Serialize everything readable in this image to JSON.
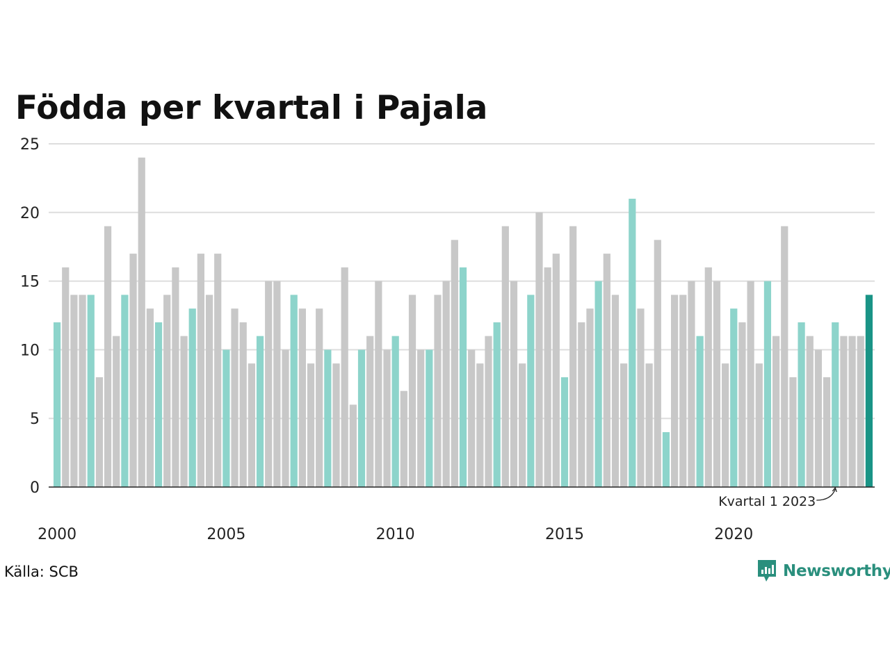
{
  "chart_data": {
    "type": "bar",
    "title": "Födda per kvartal i Pajala",
    "xlabel": "",
    "ylabel": "",
    "ylim": [
      0,
      25
    ],
    "yticks": [
      "0",
      "5",
      "10",
      "15",
      "20",
      "25"
    ],
    "x_tick_labels": [
      "2000",
      "2005",
      "2010",
      "2015",
      "2020"
    ],
    "grid": true,
    "legend": "none",
    "colors": {
      "q1": "#8dd4cb",
      "other": "#c8c8c8",
      "latest": "#1a9486",
      "grid": "#dddddd"
    },
    "categories": [
      "2000 Q1",
      "2000 Q2",
      "2000 Q3",
      "2000 Q4",
      "2001 Q1",
      "2001 Q2",
      "2001 Q3",
      "2001 Q4",
      "2002 Q1",
      "2002 Q2",
      "2002 Q3",
      "2002 Q4",
      "2003 Q1",
      "2003 Q2",
      "2003 Q3",
      "2003 Q4",
      "2004 Q1",
      "2004 Q2",
      "2004 Q3",
      "2004 Q4",
      "2005 Q1",
      "2005 Q2",
      "2005 Q3",
      "2005 Q4",
      "2006 Q1",
      "2006 Q2",
      "2006 Q3",
      "2006 Q4",
      "2007 Q1",
      "2007 Q2",
      "2007 Q3",
      "2007 Q4",
      "2008 Q1",
      "2008 Q2",
      "2008 Q3",
      "2008 Q4",
      "2009 Q1",
      "2009 Q2",
      "2009 Q3",
      "2009 Q4",
      "2010 Q1",
      "2010 Q2",
      "2010 Q3",
      "2010 Q4",
      "2011 Q1",
      "2011 Q2",
      "2011 Q3",
      "2011 Q4",
      "2012 Q1",
      "2012 Q2",
      "2012 Q3",
      "2012 Q4",
      "2013 Q1",
      "2013 Q2",
      "2013 Q3",
      "2013 Q4",
      "2014 Q1",
      "2014 Q2",
      "2014 Q3",
      "2014 Q4",
      "2015 Q1",
      "2015 Q2",
      "2015 Q3",
      "2015 Q4",
      "2016 Q1",
      "2016 Q2",
      "2016 Q3",
      "2016 Q4",
      "2017 Q1",
      "2017 Q2",
      "2017 Q3",
      "2017 Q4",
      "2018 Q1",
      "2018 Q2",
      "2018 Q3",
      "2018 Q4",
      "2019 Q1",
      "2019 Q2",
      "2019 Q3",
      "2019 Q4",
      "2020 Q1",
      "2020 Q2",
      "2020 Q3",
      "2020 Q4",
      "2021 Q1",
      "2021 Q2",
      "2021 Q3",
      "2021 Q4",
      "2022 Q1",
      "2022 Q2",
      "2022 Q3",
      "2022 Q4",
      "2023 Q1",
      "2023 Q2",
      "2023 Q3",
      "2023 Q4",
      "2024 Q1"
    ],
    "values": [
      12,
      16,
      14,
      14,
      14,
      8,
      19,
      11,
      14,
      17,
      24,
      13,
      12,
      14,
      16,
      11,
      13,
      17,
      14,
      17,
      10,
      13,
      12,
      9,
      11,
      15,
      15,
      10,
      14,
      13,
      9,
      13,
      10,
      9,
      16,
      6,
      10,
      11,
      15,
      10,
      11,
      7,
      14,
      10,
      10,
      14,
      15,
      18,
      16,
      10,
      9,
      11,
      12,
      19,
      15,
      9,
      14,
      20,
      16,
      17,
      8,
      19,
      12,
      13,
      15,
      17,
      14,
      9,
      21,
      13,
      9,
      18,
      4,
      14,
      14,
      15,
      11,
      16,
      15,
      9,
      13,
      12,
      15,
      9,
      15,
      11,
      19,
      8,
      12,
      11,
      10,
      8,
      12,
      11,
      11,
      11,
      14
    ],
    "annotations": [
      {
        "text": "Kvartal 1 2023",
        "category": "2023 Q1"
      }
    ]
  },
  "footer": {
    "source": "Källa: SCB",
    "brand": "Newsworthy",
    "brand_icon": "newsworthy-logo-icon"
  }
}
